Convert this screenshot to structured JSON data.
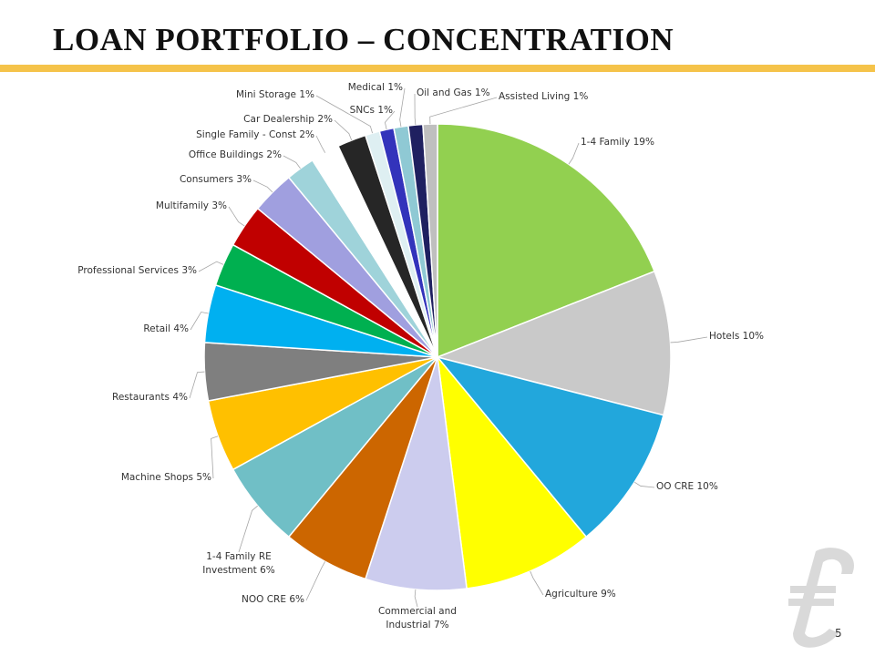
{
  "chart_data": {
    "type": "pie",
    "title": "LOAN PORTFOLIO – CONCENTRATION",
    "categories": [
      "1-4 Family",
      "Hotels",
      "OO CRE",
      "Agriculture",
      "Commercial and Industrial",
      "NOO CRE",
      "1-4 Family RE Investment",
      "Machine Shops",
      "Restaurants",
      "Retail",
      "Professional Services",
      "Multifamily",
      "Consumers",
      "Office Buildings",
      "Single Family - Const",
      "Car Dealership",
      "Mini Storage",
      "SNCs",
      "Medical",
      "Oil and Gas",
      "Assisted Living"
    ],
    "values": [
      19,
      10,
      10,
      9,
      7,
      6,
      6,
      5,
      4,
      4,
      3,
      3,
      3,
      2,
      2,
      2,
      1,
      1,
      1,
      1,
      1
    ],
    "value_labels": [
      "19%",
      "10%",
      "10%",
      "9%",
      "7%",
      "6%",
      "6%",
      "5%",
      "4%",
      "4%",
      "3%",
      "3%",
      "3%",
      "2%",
      "2%",
      "2%",
      "1%",
      "1%",
      "1%",
      "1%",
      "1%"
    ],
    "colors": [
      "#92d050",
      "#c9c9c9",
      "#22a7dc",
      "#ffff00",
      "#ccccee",
      "#cc6600",
      "#70bfc6",
      "#ffc000",
      "#7f7f7f",
      "#00b0f0",
      "#00b050",
      "#c00000",
      "#a09fdf",
      "#9fd3da",
      "#ffffff",
      "#262626",
      "#deeff2",
      "#3333bb",
      "#8fc9d4",
      "#1f2060",
      "#bfbfbf"
    ]
  },
  "page_number": "5"
}
